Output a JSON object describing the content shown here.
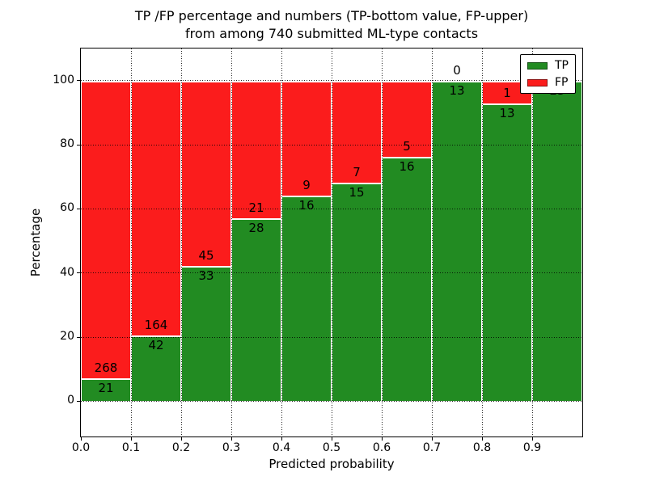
{
  "chart_data": {
    "type": "bar",
    "stacked": true,
    "title_line1": "TP /FP percentage and numbers (TP-bottom value, FP-upper)",
    "title_line2": "from among 740 submitted ML-type contacts",
    "xlabel": "Predicted probability",
    "ylabel": "Percentage",
    "xlim": [
      0.0,
      1.0
    ],
    "ylim": [
      -11,
      110
    ],
    "xtick_labels": [
      "0.0",
      "0.1",
      "0.2",
      "0.3",
      "0.4",
      "0.5",
      "0.6",
      "0.7",
      "0.8",
      "0.9"
    ],
    "ytick_values": [
      0,
      20,
      40,
      60,
      80,
      100
    ],
    "grid": {
      "style": "dotted",
      "color": "#000000"
    },
    "colors": {
      "tp": "#228b22",
      "fp": "#fb1c1c",
      "bar_edge": "#ffffff"
    },
    "legend": {
      "position": "upper-right",
      "entries": [
        {
          "label": "TP",
          "color": "#228b22"
        },
        {
          "label": "FP",
          "color": "#fb1c1c"
        }
      ]
    },
    "bins": [
      {
        "x0": 0.0,
        "x1": 0.1,
        "tp": 21,
        "fp": 268
      },
      {
        "x0": 0.1,
        "x1": 0.2,
        "tp": 42,
        "fp": 164
      },
      {
        "x0": 0.2,
        "x1": 0.3,
        "tp": 33,
        "fp": 45
      },
      {
        "x0": 0.3,
        "x1": 0.4,
        "tp": 28,
        "fp": 21
      },
      {
        "x0": 0.4,
        "x1": 0.5,
        "tp": 16,
        "fp": 9
      },
      {
        "x0": 0.5,
        "x1": 0.6,
        "tp": 15,
        "fp": 7
      },
      {
        "x0": 0.6,
        "x1": 0.7,
        "tp": 16,
        "fp": 5
      },
      {
        "x0": 0.7,
        "x1": 0.8,
        "tp": 13,
        "fp": 0,
        "fp_label_visible": true
      },
      {
        "x0": 0.8,
        "x1": 0.9,
        "tp": 13,
        "fp": 1
      },
      {
        "x0": 0.9,
        "x1": 1.0,
        "tp": 23,
        "fp": 0,
        "fp_label_visible": false
      }
    ]
  }
}
